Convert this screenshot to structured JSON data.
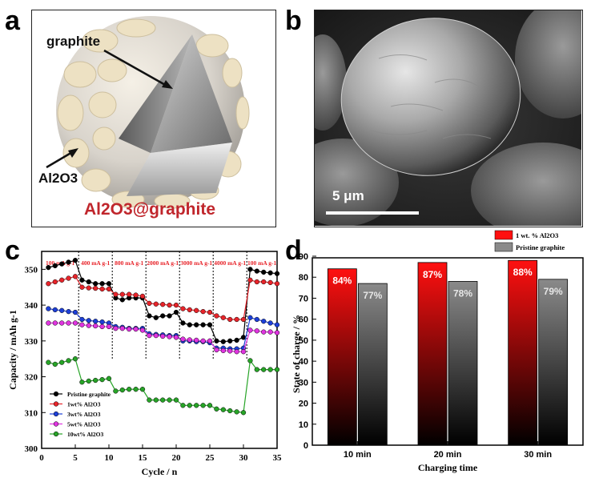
{
  "panel_a": {
    "label": "a",
    "graphite_label": "graphite",
    "coating_label": "Al2O3",
    "caption": "Al2O3@graphite",
    "caption_color": "#c0262c"
  },
  "panel_b": {
    "label": "b",
    "scale_bar_label": "5 μm"
  },
  "chart_data": [
    {
      "panel": "c",
      "type": "scatter",
      "xlabel": "Cycle / n",
      "ylabel": "Capacity / mAh g-1",
      "xlim": [
        0,
        35
      ],
      "ylim": [
        300,
        355
      ],
      "xticks": [
        0,
        5,
        10,
        15,
        20,
        25,
        30,
        35
      ],
      "yticks": [
        300,
        310,
        320,
        330,
        340,
        350
      ],
      "dividers": [
        5.5,
        10.5,
        15.5,
        20.5,
        25.5,
        30.5
      ],
      "rate_labels": [
        "100 mA g-1",
        "400 mA g-1",
        "800 mA g-1",
        "2000 mA g-1",
        "3000 mA g-1",
        "4000 mA g-1",
        "100 mA g-1"
      ],
      "rate_label_color": "#e8242a",
      "legend_position": "bottom-left",
      "series": [
        {
          "name": "Pristine graphite",
          "color": "#000000",
          "values": [
            350.5,
            351.0,
            351.5,
            352.0,
            352.5,
            347.0,
            346.5,
            346.0,
            346.0,
            346.0,
            342.0,
            341.5,
            342.0,
            342.0,
            342.0,
            337.0,
            336.5,
            337.0,
            337.0,
            338.0,
            335.0,
            334.5,
            334.5,
            334.5,
            334.5,
            330.0,
            329.8,
            330.0,
            330.2,
            331.0,
            350.0,
            349.5,
            349.2,
            349.0,
            348.8
          ]
        },
        {
          "name": "1wt% Al2O3",
          "color": "#e8242a",
          "values": [
            346.0,
            346.5,
            347.0,
            347.5,
            348.0,
            345.0,
            344.8,
            344.7,
            344.5,
            344.5,
            343.0,
            343.0,
            343.0,
            342.8,
            342.5,
            340.5,
            340.3,
            340.2,
            340.0,
            340.0,
            339.0,
            338.7,
            338.5,
            338.2,
            338.0,
            337.0,
            336.5,
            336.0,
            336.0,
            336.0,
            347.0,
            346.5,
            346.5,
            346.3,
            346.0
          ]
        },
        {
          "name": "3wt% Al2O3",
          "color": "#1d3fd8",
          "values": [
            339.0,
            338.7,
            338.5,
            338.2,
            338.0,
            336.0,
            335.7,
            335.5,
            335.3,
            335.0,
            334.0,
            333.8,
            333.5,
            333.5,
            333.5,
            332.0,
            331.8,
            331.7,
            331.5,
            331.5,
            330.0,
            330.0,
            329.8,
            329.8,
            329.5,
            328.0,
            328.0,
            327.8,
            327.8,
            328.0,
            336.5,
            336.0,
            335.5,
            335.0,
            334.5
          ]
        },
        {
          "name": "5wt% Al2O3",
          "color": "#e034e0",
          "values": [
            335.0,
            335.0,
            335.0,
            335.0,
            335.0,
            334.5,
            334.3,
            334.2,
            334.0,
            334.0,
            333.5,
            333.5,
            333.3,
            333.3,
            333.0,
            331.5,
            331.5,
            331.3,
            331.2,
            331.0,
            330.5,
            330.3,
            330.2,
            330.0,
            330.0,
            327.5,
            327.3,
            327.2,
            327.0,
            327.0,
            333.0,
            332.8,
            332.5,
            332.5,
            332.3
          ]
        },
        {
          "name": "10wt% Al2O3",
          "color": "#27a427",
          "values": [
            324.0,
            323.5,
            324.0,
            324.5,
            325.0,
            318.5,
            318.8,
            319.0,
            319.2,
            319.5,
            316.0,
            316.3,
            316.5,
            316.5,
            316.5,
            313.5,
            313.5,
            313.5,
            313.5,
            313.5,
            312.0,
            312.0,
            312.0,
            312.0,
            312.0,
            311.0,
            310.8,
            310.5,
            310.2,
            310.0,
            324.5,
            322.0,
            322.0,
            322.0,
            322.0
          ]
        }
      ]
    },
    {
      "panel": "d",
      "type": "bar",
      "xlabel": "Charging time",
      "ylabel": "State of charge / %",
      "ylim": [
        0,
        90
      ],
      "yticks": [
        0,
        10,
        20,
        30,
        40,
        50,
        60,
        70,
        80,
        90
      ],
      "categories": [
        "10 min",
        "20 min",
        "30 min"
      ],
      "legend_position": "top-right",
      "series": [
        {
          "name": "1 wt. % Al2O3",
          "color": "#ff1010",
          "values": [
            84,
            87,
            88
          ],
          "labels": [
            "84%",
            "87%",
            "88%"
          ]
        },
        {
          "name": "Pristine graphite",
          "color": "#8a8a8a",
          "values": [
            77,
            78,
            79
          ],
          "labels": [
            "77%",
            "78%",
            "79%"
          ]
        }
      ]
    }
  ],
  "panel_c": {
    "label": "c"
  },
  "panel_d": {
    "label": "d"
  }
}
